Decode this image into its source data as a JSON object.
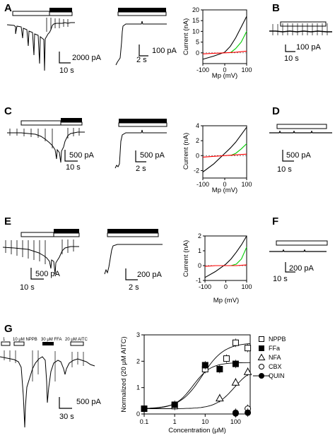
{
  "panels": {
    "A": {
      "label": "A",
      "trace1_scale": {
        "y": "2000 pA",
        "x": "10 s"
      },
      "trace2_scale": {
        "y": "100 pA",
        "x": "2 s"
      },
      "iv": {
        "ylabel": "Current (nA)",
        "xlabel": "Mp (mV)",
        "yticks": [
          "0",
          "5",
          "10",
          "15",
          "20"
        ],
        "xticks": [
          "-100",
          "0",
          "100"
        ]
      }
    },
    "B": {
      "label": "B",
      "scale": {
        "y": "100 pA",
        "x": "10 s"
      }
    },
    "C": {
      "label": "C",
      "trace1_scale": {
        "y": "500 pA",
        "x": "10 s"
      },
      "trace2_scale": {
        "y": "500 pA",
        "x": "2 s"
      },
      "iv": {
        "ylabel": "Current (nA)",
        "xlabel": "Mp (mV)",
        "yticks": [
          "-2",
          "0",
          "2",
          "4"
        ],
        "xticks": [
          "-100",
          "0",
          "100"
        ]
      }
    },
    "D": {
      "label": "D",
      "scale": {
        "y": "500 pA",
        "x": "10 s"
      }
    },
    "E": {
      "label": "E",
      "trace1_scale": {
        "y": "500 pA",
        "x": "10 s"
      },
      "trace2_scale": {
        "y": "200 pA",
        "x": "2 s"
      },
      "iv": {
        "ylabel": "Current (nA)",
        "xlabel": "Mp (mV)",
        "yticks": [
          "-1",
          "0",
          "1",
          "2"
        ],
        "xticks": [
          "-100",
          "0",
          "100"
        ]
      }
    },
    "F": {
      "label": "F",
      "scale": {
        "y": "200 pA",
        "x": "10 s"
      }
    },
    "G": {
      "label": "G",
      "bars": [
        "1",
        "10 μM NPPB",
        "30 μM FFA",
        "20 μM AITC"
      ],
      "scale": {
        "y": "500 pA",
        "x": "30 s"
      }
    }
  },
  "chart_data": [
    {
      "type": "line",
      "panel": "A",
      "xlabel": "Mp (mV)",
      "ylabel": "Current (nA)",
      "xlim": [
        -100,
        100
      ],
      "ylim": [
        -5,
        20
      ],
      "series": [
        {
          "color": "#000000",
          "x": [
            -100,
            -50,
            0,
            25,
            50,
            75,
            100
          ],
          "y": [
            -3,
            -1.5,
            0.3,
            3,
            7,
            12,
            17
          ]
        },
        {
          "color": "#00cc00",
          "x": [
            25,
            50,
            75,
            100
          ],
          "y": [
            0,
            2,
            5,
            10
          ]
        },
        {
          "color": "#ff0000",
          "x": [
            -100,
            -50,
            0,
            50,
            100
          ],
          "y": [
            -0.5,
            -0.2,
            0,
            0.3,
            0.8
          ]
        }
      ]
    },
    {
      "type": "line",
      "panel": "C",
      "xlabel": "Mp (mV)",
      "ylabel": "Current (nA)",
      "xlim": [
        -100,
        100
      ],
      "ylim": [
        -3,
        4
      ],
      "series": [
        {
          "color": "#000000",
          "x": [
            -100,
            -50,
            0,
            25,
            50,
            75,
            100
          ],
          "y": [
            -2.2,
            -1.1,
            0.3,
            1,
            1.8,
            2.8,
            3.8
          ]
        },
        {
          "color": "#00cc00",
          "x": [
            25,
            50,
            75,
            100
          ],
          "y": [
            0,
            0.3,
            0.9,
            1.6
          ]
        },
        {
          "color": "#ff0000",
          "x": [
            -100,
            -50,
            0,
            50,
            100
          ],
          "y": [
            -0.2,
            -0.1,
            0,
            0.1,
            0.2
          ]
        }
      ]
    },
    {
      "type": "line",
      "panel": "E",
      "xlabel": "Mp (mV)",
      "ylabel": "Current (nA)",
      "xlim": [
        -100,
        100
      ],
      "ylim": [
        -1,
        2
      ],
      "series": [
        {
          "color": "#000000",
          "x": [
            -100,
            -50,
            0,
            25,
            50,
            75,
            100
          ],
          "y": [
            -0.8,
            -0.4,
            0.1,
            0.45,
            0.9,
            1.4,
            2
          ]
        },
        {
          "color": "#00cc00",
          "x": [
            25,
            50,
            75,
            100
          ],
          "y": [
            0,
            0.1,
            0.45,
            1.25
          ]
        },
        {
          "color": "#ff0000",
          "x": [
            -100,
            -50,
            0,
            50,
            100
          ],
          "y": [
            -0.05,
            0,
            0,
            0,
            0.05
          ]
        }
      ]
    },
    {
      "type": "scatter",
      "panel": "G",
      "xlabel": "Concentration (μM)",
      "ylabel": "Normalized (20 μM AITC)",
      "xscale": "log",
      "xlim": [
        0.1,
        300
      ],
      "ylim": [
        0,
        3
      ],
      "xticks": [
        "0.1",
        "1",
        "10",
        "100"
      ],
      "yticks": [
        "0",
        "1",
        "2",
        "3"
      ],
      "legend": "top-right",
      "series": [
        {
          "name": "NPPB",
          "marker": "open-square",
          "x": [
            0.1,
            1,
            10,
            50,
            100,
            250
          ],
          "y": [
            0.2,
            0.3,
            1.7,
            2.1,
            2.7,
            2.5
          ]
        },
        {
          "name": "FFa",
          "marker": "filled-square",
          "x": [
            0.1,
            1,
            10,
            30,
            100
          ],
          "y": [
            0.2,
            0.35,
            1.85,
            1.7,
            1.9
          ]
        },
        {
          "name": "NFA",
          "marker": "open-triangle",
          "x": [
            30,
            100,
            250
          ],
          "y": [
            0.6,
            1.2,
            1.6
          ]
        },
        {
          "name": "CBX",
          "marker": "open-circle",
          "x": [
            100,
            250
          ],
          "y": [
            0.05,
            0.2
          ]
        },
        {
          "name": "QUIN",
          "marker": "filled-circle",
          "x": [
            100,
            250
          ],
          "y": [
            0.02,
            0.05
          ]
        }
      ]
    }
  ]
}
